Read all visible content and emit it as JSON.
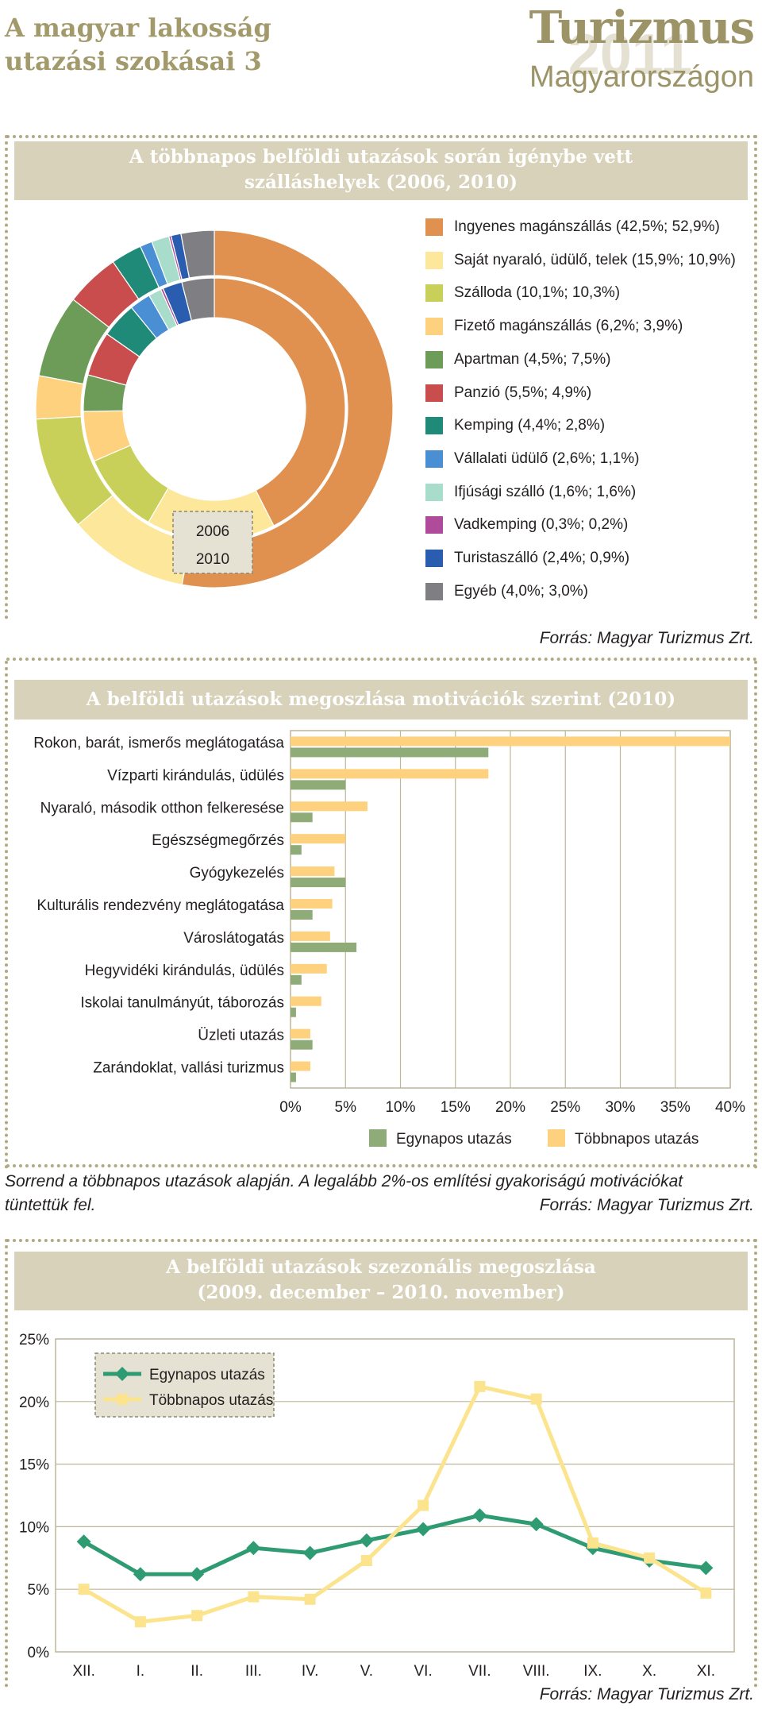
{
  "header": {
    "left_line1": "A magyar lakosság",
    "left_line2": "utazási szokásai 3",
    "right_title": "Turizmus",
    "right_year": "2011",
    "right_sub": "Magyarországon"
  },
  "colors": {
    "accent": "#a39a6b",
    "title_bg": "#d8d2ba",
    "series_egynapos": "#8fac78",
    "series_tobbnapos": "#fdd17d",
    "line_egynapos": "#2e9b72",
    "line_tobbnapos": "#fbe48d"
  },
  "section1": {
    "title_line1": "A többnapos belföldi utazások során igénybe vett",
    "title_line2": "szálláshelyek (2006, 2010)",
    "year_label_inner": "2006",
    "year_label_outer": "2010",
    "source": "Forrás: Magyar Turizmus Zrt."
  },
  "section2": {
    "title": "A belföldi utazások megoszlása motivációk szerint (2010)",
    "note_line1": "Sorrend a többnapos utazások alapján. A legalább 2%-os említési gyakoriságú motivációkat",
    "note_line2": "tüntettük fel.",
    "source": "Forrás: Magyar Turizmus Zrt."
  },
  "section3": {
    "title_line1": "A belföldi utazások szezonális megoszlása",
    "title_line2": "(2009. december – 2010. november)",
    "source": "Forrás: Magyar Turizmus Zrt."
  },
  "chart_data": [
    {
      "type": "pie",
      "title": "A többnapos belföldi utazások során igénybe vett szálláshelyek (2006, 2010)",
      "series": [
        {
          "name": "2006",
          "values": [
            42.5,
            15.9,
            10.1,
            6.2,
            4.5,
            5.5,
            4.4,
            2.6,
            1.6,
            0.3,
            2.4,
            4.0
          ]
        },
        {
          "name": "2010",
          "values": [
            52.9,
            10.9,
            10.3,
            3.9,
            7.5,
            4.9,
            2.8,
            1.1,
            1.6,
            0.2,
            0.9,
            3.0
          ]
        }
      ],
      "categories": [
        {
          "label": "Ingyenes magánszállás (42,5%; 52,9%)",
          "color": "#e0904f"
        },
        {
          "label": "Saját nyaraló, üdülő, telek (15,9%; 10,9%)",
          "color": "#fde79a"
        },
        {
          "label": "Szálloda (10,1%; 10,3%)",
          "color": "#c8d05a"
        },
        {
          "label": "Fizető magánszállás (6,2%; 3,9%)",
          "color": "#fdd17d"
        },
        {
          "label": "Apartman (4,5%; 7,5%)",
          "color": "#6d9c58"
        },
        {
          "label": "Panzió (5,5%; 4,9%)",
          "color": "#c94d4d"
        },
        {
          "label": "Kemping (4,4%; 2,8%)",
          "color": "#1f8a78"
        },
        {
          "label": "Vállalati üdülő (2,6%; 1,1%)",
          "color": "#4a8fd4"
        },
        {
          "label": "Ifjúsági szálló (1,6%; 1,6%)",
          "color": "#a8dccb"
        },
        {
          "label": "Vadkemping (0,3%; 0,2%)",
          "color": "#b04a9a"
        },
        {
          "label": "Turistaszálló (2,4%; 0,9%)",
          "color": "#2a5db0"
        },
        {
          "label": "Egyéb (4,0%; 3,0%)",
          "color": "#7f7f83"
        }
      ]
    },
    {
      "type": "bar",
      "title": "A belföldi utazások megoszlása motivációk szerint (2010)",
      "orientation": "horizontal",
      "categories": [
        "Rokon, barát, ismerős meglátogatása",
        "Vízparti kirándulás, üdülés",
        "Nyaraló, második otthon felkeresése",
        "Egészségmegőrzés",
        "Gyógykezelés",
        "Kulturális rendezvény meglátogatása",
        "Városlátogatás",
        "Hegyvidéki kirándulás, üdülés",
        "Iskolai tanulmányút, táborozás",
        "Üzleti utazás",
        "Zarándoklat, vallási turizmus"
      ],
      "series": [
        {
          "name": "Egynapos utazás",
          "values": [
            18.0,
            5.0,
            2.0,
            1.0,
            5.0,
            2.0,
            6.0,
            1.0,
            0.5,
            2.0,
            0.5
          ]
        },
        {
          "name": "Többnapos utazás",
          "values": [
            40.0,
            18.0,
            7.0,
            5.0,
            4.0,
            3.8,
            3.6,
            3.3,
            2.8,
            1.8,
            1.8
          ]
        }
      ],
      "xlim": [
        0,
        40
      ],
      "xticks": [
        "0%",
        "5%",
        "10%",
        "15%",
        "20%",
        "25%",
        "30%",
        "35%",
        "40%"
      ],
      "xtick_values": [
        0,
        5,
        10,
        15,
        20,
        25,
        30,
        35,
        40
      ],
      "legend_position": "bottom",
      "grid": true
    },
    {
      "type": "line",
      "title": "A belföldi utazások szezonális megoszlása (2009. december – 2010. november)",
      "categories": [
        "XII.",
        "I.",
        "II.",
        "III.",
        "IV.",
        "V.",
        "VI.",
        "VII.",
        "VIII.",
        "IX.",
        "X.",
        "XI."
      ],
      "series": [
        {
          "name": "Egynapos utazás",
          "values": [
            8.8,
            6.2,
            6.2,
            8.3,
            7.9,
            8.9,
            9.8,
            10.9,
            10.2,
            8.3,
            7.3,
            6.7
          ]
        },
        {
          "name": "Többnapos utazás",
          "values": [
            5.0,
            2.4,
            2.9,
            4.4,
            4.2,
            7.3,
            11.7,
            21.2,
            20.2,
            8.7,
            7.5,
            4.7
          ]
        }
      ],
      "ylim": [
        0,
        25
      ],
      "yticks": [
        "0%",
        "5%",
        "10%",
        "15%",
        "20%",
        "25%"
      ],
      "ytick_values": [
        0,
        5,
        10,
        15,
        20,
        25
      ],
      "legend_position": "top-left",
      "grid": true
    }
  ]
}
